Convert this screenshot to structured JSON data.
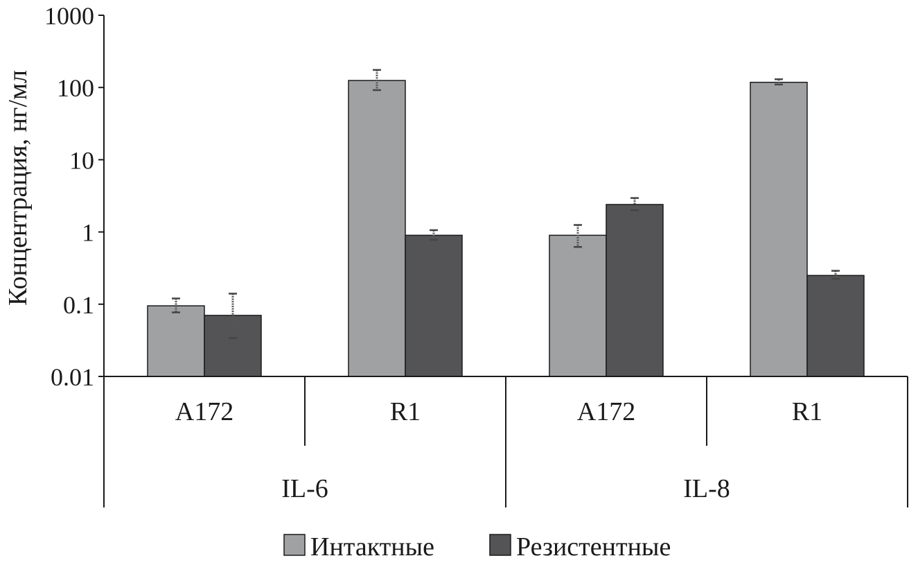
{
  "chart_data": {
    "type": "bar",
    "yscale": "log",
    "ylim": [
      0.01,
      1000
    ],
    "ylabel": "Концентрация, нг/мл",
    "ytick_labels": [
      "0.01",
      "0.1",
      "1",
      "10",
      "100",
      "1000"
    ],
    "ytick_values": [
      0.01,
      0.1,
      1,
      10,
      100,
      1000
    ],
    "groups": [
      {
        "label": "IL-6",
        "categories": [
          "A172",
          "R1"
        ]
      },
      {
        "label": "IL-8",
        "categories": [
          "A172",
          "R1"
        ]
      }
    ],
    "series": [
      {
        "name": "Интактные",
        "color": "#a0a1a3",
        "values": [
          0.095,
          125,
          0.9,
          118
        ],
        "err_low": [
          0.077,
          92,
          0.62,
          110
        ],
        "err_high": [
          0.12,
          175,
          1.25,
          130
        ]
      },
      {
        "name": "Резистентные",
        "color": "#545456",
        "values": [
          0.07,
          0.9,
          2.4,
          0.25
        ],
        "err_low": [
          0.034,
          0.78,
          2.0,
          0.225
        ],
        "err_high": [
          0.14,
          1.06,
          2.95,
          0.29
        ]
      }
    ],
    "legend_position": "bottom"
  }
}
